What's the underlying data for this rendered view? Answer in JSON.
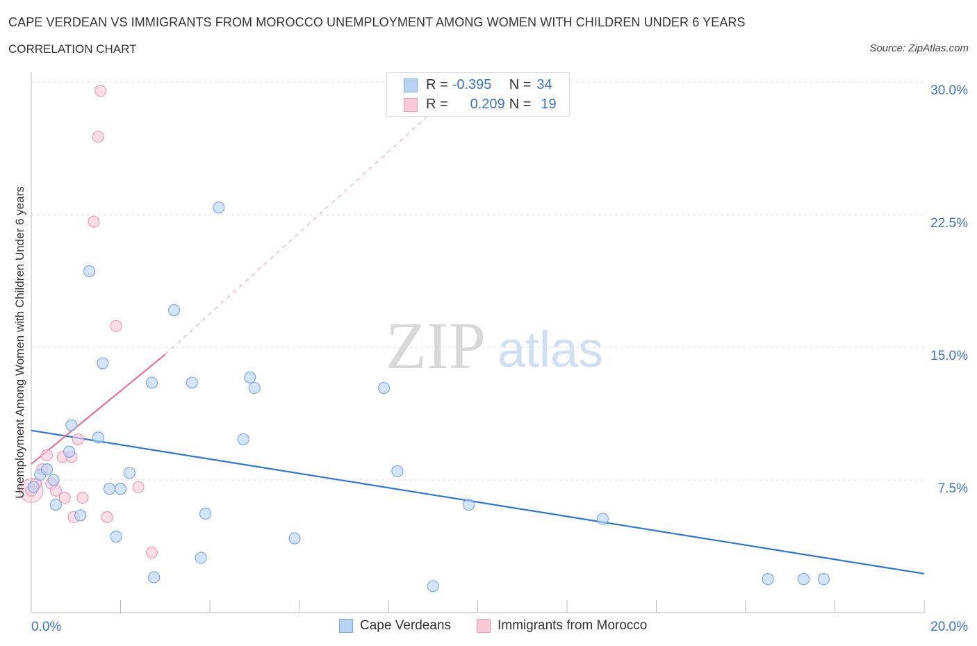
{
  "header": {
    "title": "CAPE VERDEAN VS IMMIGRANTS FROM MOROCCO UNEMPLOYMENT AMONG WOMEN WITH CHILDREN UNDER 6 YEARS",
    "subtitle": "CORRELATION CHART",
    "source": "Source: ZipAtlas.com"
  },
  "watermark": {
    "zip": "ZIP",
    "atlas": "atlas"
  },
  "stats": {
    "row1": {
      "r_label": "R =",
      "r_value": "-0.395",
      "n_label": "N =",
      "n_value": "34"
    },
    "row2": {
      "r_label": "R =",
      "r_value": "0.209",
      "n_label": "N =",
      "n_value": "19"
    }
  },
  "legend": {
    "series1": "Cape Verdeans",
    "series2": "Immigrants from Morocco"
  },
  "colors": {
    "blue_fill": "#b9d3f5",
    "blue_stroke": "#7aa8e8",
    "blue_line": "#2e75d6",
    "pink_fill": "#f8c8d6",
    "pink_stroke": "#ee9bb5",
    "pink_line": "#e8709a",
    "axis_text": "#3b74c4",
    "grid": "#dddddd"
  },
  "chart_data": {
    "type": "scatter",
    "title": "CAPE VERDEAN VS IMMIGRANTS FROM MOROCCO UNEMPLOYMENT AMONG WOMEN WITH CHILDREN UNDER 6 YEARS",
    "xlabel": "",
    "ylabel": "Unemployment Among Women with Children Under 6 years",
    "xlim": [
      0,
      20
    ],
    "ylim": [
      0,
      30
    ],
    "x_tick_labels": {
      "min": "0.0%",
      "max": "20.0%"
    },
    "y_ticks": [
      {
        "value": 7.5,
        "label": "7.5%"
      },
      {
        "value": 15.0,
        "label": "15.0%"
      },
      {
        "value": 22.5,
        "label": "22.5%"
      },
      {
        "value": 30.0,
        "label": "30.0%"
      }
    ],
    "grid": true,
    "series": [
      {
        "name": "Cape Verdeans",
        "color": "blue",
        "points": [
          [
            0.05,
            7.1
          ],
          [
            0.2,
            7.8
          ],
          [
            0.35,
            8.1
          ],
          [
            0.5,
            7.5
          ],
          [
            0.55,
            6.1
          ],
          [
            0.85,
            9.1
          ],
          [
            0.9,
            10.6
          ],
          [
            1.1,
            5.5
          ],
          [
            1.3,
            19.3
          ],
          [
            1.5,
            9.9
          ],
          [
            1.6,
            14.1
          ],
          [
            1.75,
            7.0
          ],
          [
            1.9,
            4.3
          ],
          [
            2.0,
            7.0
          ],
          [
            2.2,
            7.9
          ],
          [
            2.7,
            13.0
          ],
          [
            2.75,
            2.0
          ],
          [
            3.2,
            17.1
          ],
          [
            3.6,
            13.0
          ],
          [
            3.8,
            3.1
          ],
          [
            3.9,
            5.6
          ],
          [
            4.2,
            22.9
          ],
          [
            4.75,
            9.8
          ],
          [
            4.9,
            13.3
          ],
          [
            5.0,
            12.7
          ],
          [
            5.9,
            4.2
          ],
          [
            7.9,
            12.7
          ],
          [
            8.2,
            8.0
          ],
          [
            9.0,
            1.5
          ],
          [
            9.8,
            6.1
          ],
          [
            12.8,
            5.3
          ],
          [
            16.5,
            1.9
          ],
          [
            17.3,
            1.9
          ],
          [
            17.75,
            1.9
          ]
        ],
        "trend": {
          "x0": 0,
          "y0": 10.3,
          "x1": 20,
          "y1": 2.2
        }
      },
      {
        "name": "Immigrants from Morocco",
        "color": "pink",
        "points": [
          [
            0.0,
            6.9
          ],
          [
            0.1,
            7.3
          ],
          [
            0.25,
            8.1
          ],
          [
            0.35,
            8.9
          ],
          [
            0.45,
            7.3
          ],
          [
            0.55,
            6.9
          ],
          [
            0.7,
            8.8
          ],
          [
            0.75,
            6.5
          ],
          [
            0.9,
            8.8
          ],
          [
            0.95,
            5.4
          ],
          [
            1.05,
            9.8
          ],
          [
            1.15,
            6.5
          ],
          [
            1.7,
            5.4
          ],
          [
            1.4,
            22.1
          ],
          [
            1.5,
            26.9
          ],
          [
            1.55,
            29.5
          ],
          [
            1.9,
            16.2
          ],
          [
            2.4,
            7.1
          ],
          [
            2.7,
            3.4
          ]
        ],
        "trend": {
          "x0": 0,
          "y0": 8.4,
          "x1": 3.0,
          "y1": 14.6
        },
        "trend_extension": {
          "x0": 3.0,
          "y0": 14.6,
          "x1": 9.5,
          "y1": 29.5
        }
      }
    ]
  }
}
